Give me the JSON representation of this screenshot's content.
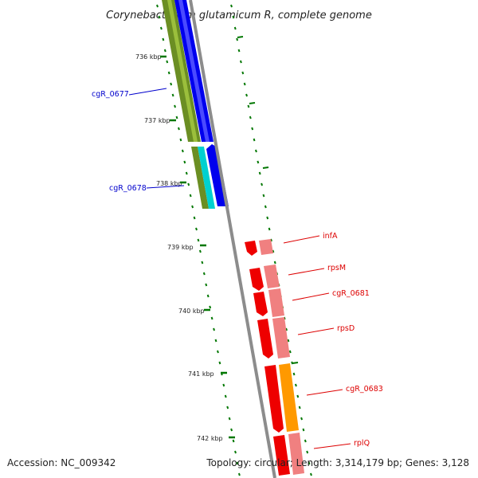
{
  "title": "Corynebacterium glutamicum R, complete genome",
  "ticks": [
    "736 kbp",
    "737 kbp",
    "738 kbp",
    "739 kbp",
    "740 kbp",
    "741 kbp",
    "742 kbp"
  ],
  "genes": [
    {
      "label": "cgR_0677",
      "color": "#0000cc"
    },
    {
      "label": "cgR_0678",
      "color": "#0000cc"
    },
    {
      "label": "infA",
      "color": "#dd0000"
    },
    {
      "label": "rpsM",
      "color": "#dd0000"
    },
    {
      "label": "cgR_0681",
      "color": "#dd0000"
    },
    {
      "label": "rpsD",
      "color": "#dd0000"
    },
    {
      "label": "cgR_0683",
      "color": "#dd0000"
    },
    {
      "label": "rplQ",
      "color": "#dd0000"
    }
  ],
  "footer": {
    "accession": "Accession: NC_009342",
    "summary": "Topology: circular; Length: 3,314,179 bp; Genes: 3,128"
  },
  "colors": {
    "backbone": "#8c8c8c",
    "tick": "#007700",
    "gene_forward": "#0000ee",
    "gene_reverse": "#ee0000",
    "cog_olive": "#6b8e23",
    "cog_cyan": "#00d0d0",
    "cog_pink": "#f08080",
    "cog_orange": "#ff9900",
    "cog_blue_light": "#aab4f0"
  }
}
